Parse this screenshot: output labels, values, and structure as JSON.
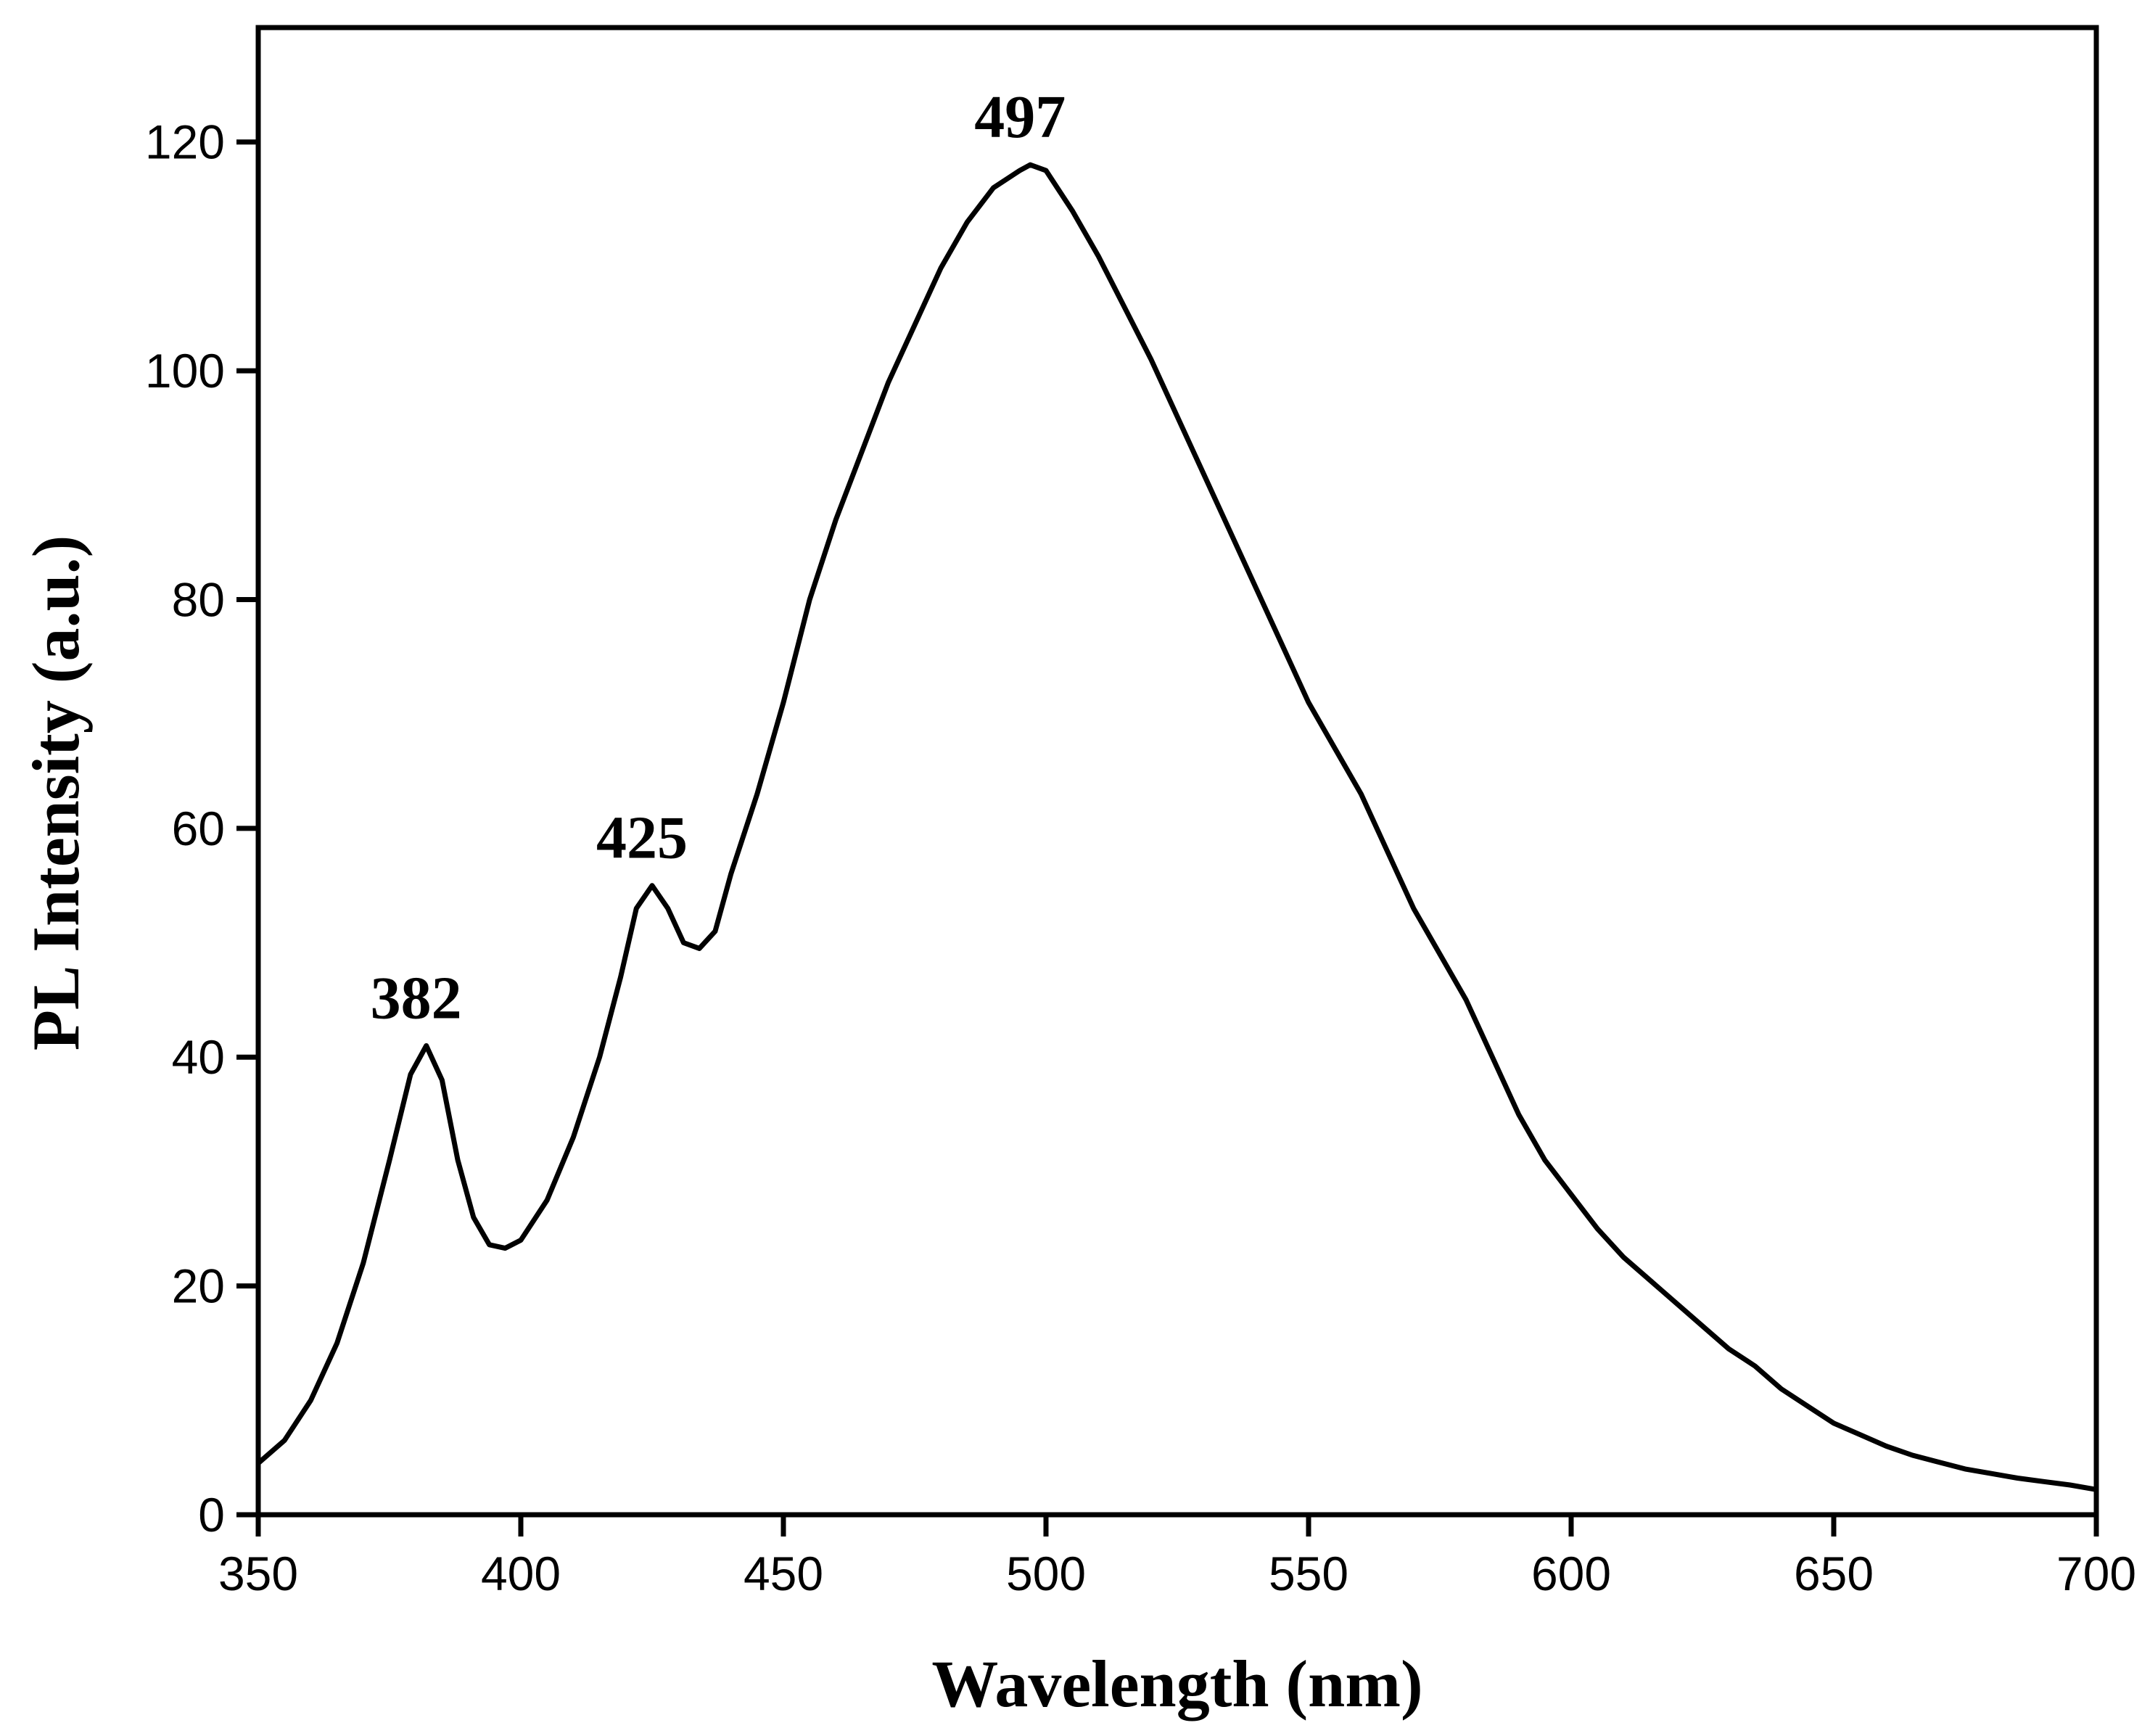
{
  "chart_data": {
    "type": "line",
    "title": "",
    "xlabel": "Wavelength (nm)",
    "ylabel": "PL Intensity (a.u.)",
    "xlim": [
      350,
      700
    ],
    "ylim": [
      0,
      130
    ],
    "x_ticks": [
      350,
      400,
      450,
      500,
      550,
      600,
      650,
      700
    ],
    "y_ticks": [
      0,
      20,
      40,
      60,
      80,
      100,
      120
    ],
    "grid": false,
    "legend": "none",
    "series": [
      {
        "name": "PL spectrum",
        "color": "#000000",
        "points": [
          [
            350,
            4.5
          ],
          [
            355,
            6.5
          ],
          [
            360,
            10
          ],
          [
            365,
            15
          ],
          [
            370,
            22
          ],
          [
            375,
            31
          ],
          [
            379,
            38.5
          ],
          [
            382,
            41
          ],
          [
            385,
            38
          ],
          [
            388,
            31
          ],
          [
            391,
            26
          ],
          [
            394,
            23.6
          ],
          [
            397,
            23.3
          ],
          [
            400,
            24
          ],
          [
            405,
            27.5
          ],
          [
            410,
            33
          ],
          [
            415,
            40
          ],
          [
            419,
            47
          ],
          [
            422,
            53
          ],
          [
            425,
            55
          ],
          [
            428,
            53
          ],
          [
            431,
            50
          ],
          [
            434,
            49.5
          ],
          [
            437,
            51
          ],
          [
            440,
            56
          ],
          [
            445,
            63
          ],
          [
            450,
            71
          ],
          [
            455,
            80
          ],
          [
            460,
            87
          ],
          [
            465,
            93
          ],
          [
            470,
            99
          ],
          [
            475,
            104
          ],
          [
            480,
            109
          ],
          [
            485,
            113
          ],
          [
            490,
            116
          ],
          [
            495,
            117.5
          ],
          [
            497,
            118
          ],
          [
            500,
            117.5
          ],
          [
            505,
            114
          ],
          [
            510,
            110
          ],
          [
            515,
            105.5
          ],
          [
            520,
            101
          ],
          [
            525,
            96
          ],
          [
            530,
            91
          ],
          [
            535,
            86
          ],
          [
            540,
            81
          ],
          [
            545,
            76
          ],
          [
            550,
            71
          ],
          [
            555,
            67
          ],
          [
            560,
            63
          ],
          [
            565,
            58
          ],
          [
            570,
            53
          ],
          [
            575,
            49
          ],
          [
            580,
            45
          ],
          [
            585,
            40
          ],
          [
            590,
            35
          ],
          [
            595,
            31
          ],
          [
            600,
            28
          ],
          [
            605,
            25
          ],
          [
            610,
            22.5
          ],
          [
            615,
            20.5
          ],
          [
            620,
            18.5
          ],
          [
            625,
            16.5
          ],
          [
            630,
            14.5
          ],
          [
            635,
            13
          ],
          [
            640,
            11
          ],
          [
            645,
            9.5
          ],
          [
            650,
            8
          ],
          [
            655,
            7
          ],
          [
            660,
            6
          ],
          [
            665,
            5.2
          ],
          [
            670,
            4.6
          ],
          [
            675,
            4
          ],
          [
            680,
            3.6
          ],
          [
            685,
            3.2
          ],
          [
            690,
            2.9
          ],
          [
            695,
            2.6
          ],
          [
            700,
            2.2
          ]
        ]
      }
    ],
    "annotations": [
      {
        "text": "382",
        "x": 382,
        "y": 41
      },
      {
        "text": "425",
        "x": 425,
        "y": 55
      },
      {
        "text": "497",
        "x": 497,
        "y": 118
      }
    ]
  }
}
